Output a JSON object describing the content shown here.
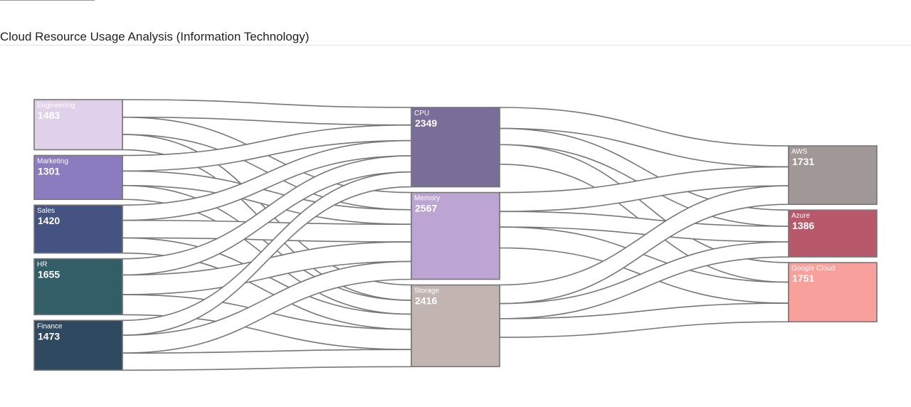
{
  "page": {
    "title": "Cloud Resource Usage Analysis (Information Technology)"
  },
  "chart_data": {
    "type": "sankey",
    "title": "Cloud Resource Usage Analysis (Information Technology)",
    "columns": [
      [
        "Engineering",
        "Marketing",
        "Sales",
        "HR",
        "Finance"
      ],
      [
        "CPU",
        "Memory",
        "Storage"
      ],
      [
        "AWS",
        "Azure",
        "Google Cloud"
      ]
    ],
    "nodes": [
      {
        "name": "Engineering",
        "value": 1483,
        "color": "#e0d0ea"
      },
      {
        "name": "Marketing",
        "value": 1301,
        "color": "#8b7cc0"
      },
      {
        "name": "Sales",
        "value": 1420,
        "color": "#455382"
      },
      {
        "name": "HR",
        "value": 1655,
        "color": "#335e67"
      },
      {
        "name": "Finance",
        "value": 1473,
        "color": "#2f4a60"
      },
      {
        "name": "CPU",
        "value": 2349,
        "color": "#7a6d98"
      },
      {
        "name": "Memory",
        "value": 2567,
        "color": "#bca5d3"
      },
      {
        "name": "Storage",
        "value": 2416,
        "color": "#c2b4b0"
      },
      {
        "name": "AWS",
        "value": 1731,
        "color": "#a09896"
      },
      {
        "name": "Azure",
        "value": 1386,
        "color": "#b8596b"
      },
      {
        "name": "Google Cloud",
        "value": 1751,
        "color": "#f8a09c"
      }
    ],
    "links": [
      {
        "source": "Engineering",
        "target": "CPU",
        "value": 520
      },
      {
        "source": "Engineering",
        "target": "Memory",
        "value": 510
      },
      {
        "source": "Engineering",
        "target": "Storage",
        "value": 453
      },
      {
        "source": "Marketing",
        "target": "CPU",
        "value": 460
      },
      {
        "source": "Marketing",
        "target": "Memory",
        "value": 430
      },
      {
        "source": "Marketing",
        "target": "Storage",
        "value": 411
      },
      {
        "source": "Sales",
        "target": "CPU",
        "value": 450
      },
      {
        "source": "Sales",
        "target": "Memory",
        "value": 520
      },
      {
        "source": "Sales",
        "target": "Storage",
        "value": 450
      },
      {
        "source": "HR",
        "target": "CPU",
        "value": 480
      },
      {
        "source": "HR",
        "target": "Memory",
        "value": 580
      },
      {
        "source": "HR",
        "target": "Storage",
        "value": 595
      },
      {
        "source": "Finance",
        "target": "CPU",
        "value": 439
      },
      {
        "source": "Finance",
        "target": "Memory",
        "value": 527
      },
      {
        "source": "Finance",
        "target": "Storage",
        "value": 507
      },
      {
        "source": "CPU",
        "target": "AWS",
        "value": 620
      },
      {
        "source": "CPU",
        "target": "Azure",
        "value": 480
      },
      {
        "source": "CPU",
        "target": "Google Cloud",
        "value": 580
      },
      {
        "source": "Memory",
        "target": "AWS",
        "value": 560
      },
      {
        "source": "Memory",
        "target": "Azure",
        "value": 460
      },
      {
        "source": "Memory",
        "target": "Google Cloud",
        "value": 620
      },
      {
        "source": "Storage",
        "target": "AWS",
        "value": 551
      },
      {
        "source": "Storage",
        "target": "Azure",
        "value": 446
      },
      {
        "source": "Storage",
        "target": "Google Cloud",
        "value": 551
      }
    ]
  }
}
